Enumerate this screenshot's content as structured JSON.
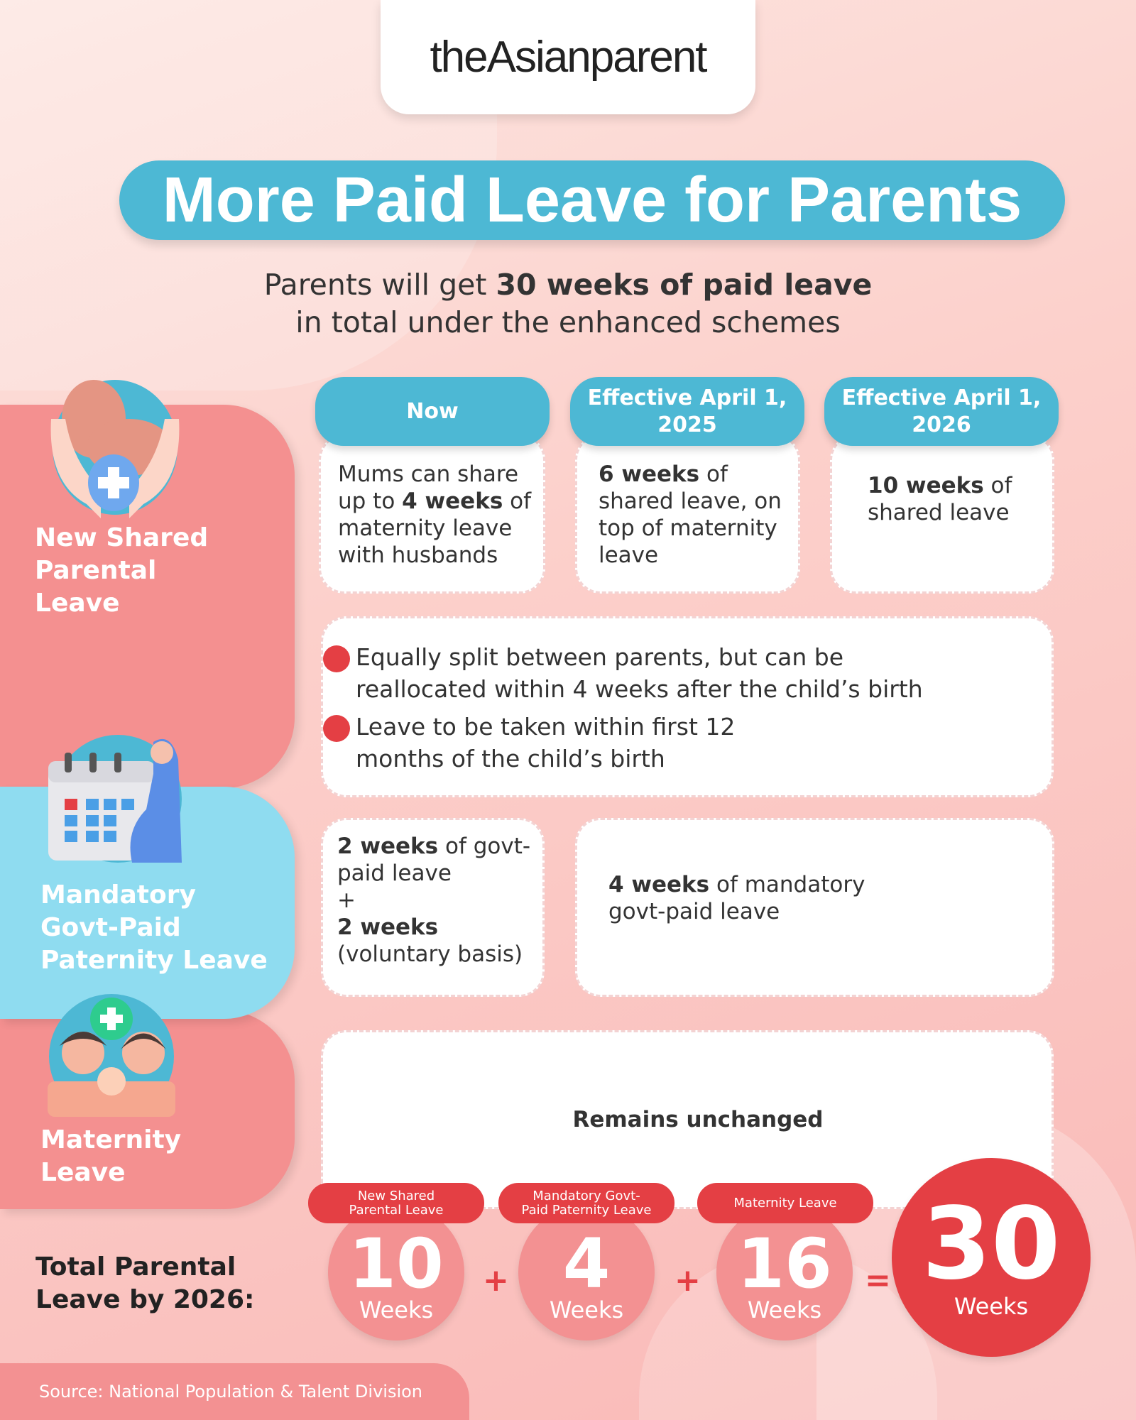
{
  "logo": "theAsianparent",
  "title": "More Paid Leave for Parents",
  "subtitle": {
    "pre": "Parents will get ",
    "bold": "30 weeks of paid leave",
    "line2": "in total under the enhanced schemes"
  },
  "sections": [
    {
      "label": "New Shared Parental Leave",
      "icon": "hands-holding-baby-icon",
      "color": "#f49090"
    },
    {
      "label": "Mandatory Govt-Paid Paternity Leave",
      "icon": "calendar-pregnant-woman-icon",
      "color": "#8fdcf0"
    },
    {
      "label": "Maternity Leave",
      "icon": "parents-with-baby-icon",
      "color": "#f49090"
    }
  ],
  "columns": [
    "Now",
    "Effective April 1, 2025",
    "Effective April 1, 2026"
  ],
  "shared": {
    "now": {
      "a": "Mums can share up to ",
      "b": "4 weeks",
      "c": " of maternity leave with husbands"
    },
    "y2025": {
      "b": "6 weeks",
      "c": " of shared leave, on top of maternity leave"
    },
    "y2026": {
      "b": "10 weeks",
      "c": " of shared leave"
    },
    "bullets": [
      "Equally split between parents, but can be reallocated within 4 weeks after the child’s birth",
      "Leave to be taken within first 12 months of the child’s birth"
    ]
  },
  "paternity": {
    "now": {
      "b1": "2 weeks",
      "c1": " of govt-paid leave",
      "plus": "+",
      "b2": "2 weeks",
      "c2": "(voluntary basis)"
    },
    "new": {
      "b": "4 weeks",
      "c": " of mandatory govt-paid leave"
    }
  },
  "maternity": {
    "text": "Remains unchanged"
  },
  "total": {
    "label": "Total Parental Leave by 2026:",
    "items": [
      {
        "label": "New Shared Parental Leave",
        "value": "10",
        "unit": "Weeks"
      },
      {
        "label": "Mandatory Govt-Paid Paternity Leave",
        "value": "4",
        "unit": "Weeks"
      },
      {
        "label": "Maternity Leave",
        "value": "16",
        "unit": "Weeks"
      }
    ],
    "plus": "+",
    "equals": "=",
    "sum": {
      "value": "30",
      "unit": "Weeks"
    }
  },
  "source": "Source: National Population & Talent Division",
  "colors": {
    "blue": "#4db8d4",
    "pink": "#f49090",
    "red": "#e43f44",
    "light_blue": "#8fdcf0"
  }
}
